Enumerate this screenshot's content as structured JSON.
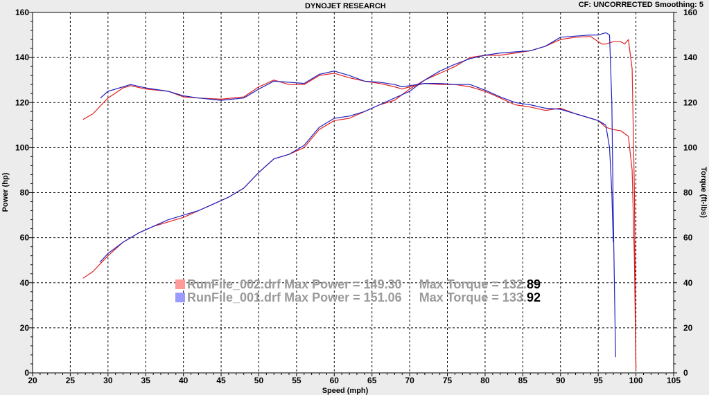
{
  "header": {
    "title": "DYNOJET RESEARCH",
    "cf_text": "CF: UNCORRECTED  Smoothing: 5"
  },
  "legend": [
    {
      "file": "RunFile_002.drf",
      "power_label": "Max Power = 149.30",
      "torque_prefix": "Max Torque = 132.",
      "torque_suffix": "89",
      "color": "#ff9a9a"
    },
    {
      "file": "RunFile_001.drf",
      "power_label": "Max Power = 151.06",
      "torque_prefix": "Max Torque = 133.",
      "torque_suffix": "92",
      "color": "#9a9aff"
    }
  ],
  "colors": {
    "run_002": "#e02020",
    "run_001": "#2020c0",
    "grid": "#000000",
    "background": "#ffffff",
    "panel": "#ececec"
  },
  "chart_data": {
    "type": "line",
    "title": "DYNOJET RESEARCH",
    "xlabel": "Speed (mph)",
    "ylabel_left": "Power (hp)",
    "ylabel_right": "Torque (ft-lbs)",
    "xlim": [
      20,
      105
    ],
    "ylim": [
      0,
      160
    ],
    "xticks": [
      20,
      25,
      30,
      35,
      40,
      45,
      50,
      55,
      60,
      65,
      70,
      75,
      80,
      85,
      90,
      95,
      100,
      105
    ],
    "yticks": [
      0,
      20,
      40,
      60,
      80,
      100,
      120,
      140,
      160
    ],
    "grid": true,
    "series": [
      {
        "name": "RunFile_002.drf",
        "quantity": "Power",
        "color": "#e02020",
        "x": [
          26.7,
          28,
          30,
          32,
          34,
          36,
          38,
          40,
          42,
          44,
          46,
          48,
          50,
          52,
          54,
          56,
          58,
          60,
          62,
          64,
          66,
          68,
          70,
          72,
          74,
          76,
          78,
          80,
          82,
          84,
          86,
          88,
          90,
          92,
          94,
          95,
          95.5,
          96,
          97,
          98,
          98.5,
          99,
          99.5,
          99.8,
          100
        ],
        "y": [
          42,
          45,
          52,
          58,
          62,
          65,
          67,
          69,
          72,
          75,
          78,
          82,
          89,
          95,
          97,
          100,
          108,
          112,
          113,
          116,
          119,
          121,
          126,
          130,
          133,
          136,
          140,
          141,
          141,
          142,
          143,
          145,
          148,
          149,
          149.3,
          147,
          146,
          146,
          147,
          147,
          146,
          148,
          135,
          80,
          2
        ]
      },
      {
        "name": "RunFile_002.drf",
        "quantity": "Torque",
        "color": "#e02020",
        "x": [
          26.7,
          28,
          30,
          32,
          33,
          35,
          38,
          40,
          42,
          45,
          48,
          50,
          52,
          54,
          56,
          58,
          60,
          62,
          64,
          66,
          68,
          69,
          70,
          72,
          74,
          76,
          78,
          80,
          82,
          84,
          86,
          88,
          90,
          92,
          94,
          95,
          96,
          97,
          98,
          99,
          99.5,
          99.8,
          100
        ],
        "y": [
          112.5,
          115,
          122,
          126.5,
          127.5,
          126,
          125,
          122.5,
          122,
          121.5,
          122.5,
          127,
          130,
          128,
          128,
          132,
          133,
          131,
          129.5,
          128.5,
          127,
          126,
          127,
          128.5,
          128,
          128,
          127,
          125,
          122,
          119,
          118,
          116.5,
          117.5,
          115,
          113,
          112,
          109,
          108,
          107.5,
          105,
          90,
          50,
          1
        ]
      },
      {
        "name": "RunFile_001.drf",
        "quantity": "Power",
        "color": "#2020c0",
        "x": [
          28.9,
          30,
          32,
          34,
          36,
          38,
          40,
          42,
          44,
          46,
          48,
          50,
          52,
          54,
          56,
          58,
          60,
          62,
          64,
          66,
          68,
          70,
          72,
          74,
          76,
          78,
          80,
          82,
          84,
          86,
          88,
          90,
          92,
          94,
          95,
          96,
          96.5,
          96.8,
          97,
          97.3
        ],
        "y": [
          49,
          53,
          58,
          62,
          65,
          68,
          70,
          72,
          75,
          78,
          82,
          89,
          95,
          97,
          101,
          109,
          113,
          114,
          116,
          119,
          122,
          125,
          130,
          134,
          137,
          139.5,
          141,
          142,
          142.5,
          143,
          145,
          149,
          149.5,
          150,
          150,
          151,
          150,
          120,
          70,
          7
        ]
      },
      {
        "name": "RunFile_001.drf",
        "quantity": "Torque",
        "color": "#2020c0",
        "x": [
          29,
          30,
          32,
          33,
          35,
          38,
          40,
          42,
          45,
          48,
          50,
          52,
          54,
          56,
          58,
          60,
          62,
          64,
          66,
          68,
          69,
          70,
          72,
          74,
          76,
          78,
          80,
          82,
          84,
          86,
          88,
          90,
          92,
          94,
          95,
          96,
          96.5,
          96.8,
          97
        ],
        "y": [
          122,
          125,
          127,
          128,
          126.5,
          125,
          123,
          122,
          121,
          122,
          126,
          129.5,
          129,
          128.5,
          132.5,
          134,
          132,
          129.5,
          129,
          128,
          127,
          127.5,
          128.5,
          128.5,
          128,
          128,
          125.5,
          122.5,
          120,
          119,
          117.5,
          117,
          115,
          113,
          112,
          110,
          100,
          80,
          58
        ]
      }
    ]
  }
}
